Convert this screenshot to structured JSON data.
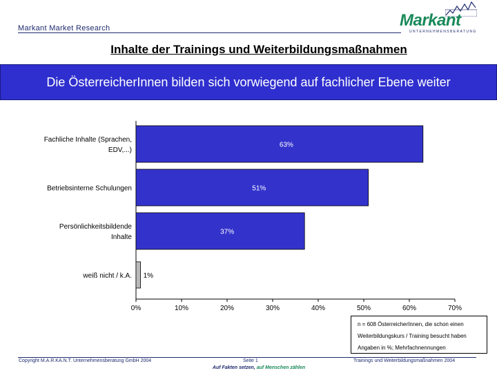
{
  "header": {
    "brand": "Markant Market Research",
    "logo_name": "Markant",
    "logo_sub": "UNTERNEHMENSBERATUNG",
    "logo_icon": "rising-line-graph-icon",
    "logo_color": "#1a8a5a",
    "brand_color": "#1e2a6e"
  },
  "title": "Inhalte der Trainings und Weiterbildungsmaßnahmen",
  "banner": {
    "text": "Die ÖsterreicherInnen bilden sich vorwiegend auf fachlicher Ebene weiter",
    "color": "#2f2fcf"
  },
  "chart_data": {
    "type": "bar",
    "orientation": "horizontal",
    "categories": [
      [
        "Fachliche Inhalte (Sprachen,",
        "EDV,...)"
      ],
      [
        "Betriebsinterne Schulungen"
      ],
      [
        "Persönlichkeitsbildende",
        "Inhalte"
      ],
      [
        "weiß nicht / k.A."
      ]
    ],
    "values": [
      63,
      51,
      37,
      1
    ],
    "value_labels": [
      "63%",
      "51%",
      "37%",
      "1%"
    ],
    "colors": [
      "#3333cc",
      "#3333cc",
      "#3333cc",
      "#bbbbbb"
    ],
    "xlim": [
      0,
      70
    ],
    "xticks": [
      0,
      10,
      20,
      30,
      40,
      50,
      60,
      70
    ],
    "xtick_labels": [
      "0%",
      "10%",
      "20%",
      "30%",
      "40%",
      "50%",
      "60%",
      "70%"
    ],
    "grid": false,
    "legend": "none"
  },
  "note": {
    "line1": "n = 608 ÖsterreicherInnen, die schon einen",
    "line2": "Weiterbildungskurs / Training besucht haben",
    "line3": "Angaben in %; Mehrfachnennungen"
  },
  "footer": {
    "copyright": "Copyright M.A.R.KA.N.T. Unternehmensberatung GmbH 2004",
    "page": "Seite  1",
    "report": "Trainings und Weiterbildungsmaßnahmen 2004",
    "slogan_a": "Auf Fakten setzen,",
    "slogan_b": "auf Menschen zählen"
  }
}
